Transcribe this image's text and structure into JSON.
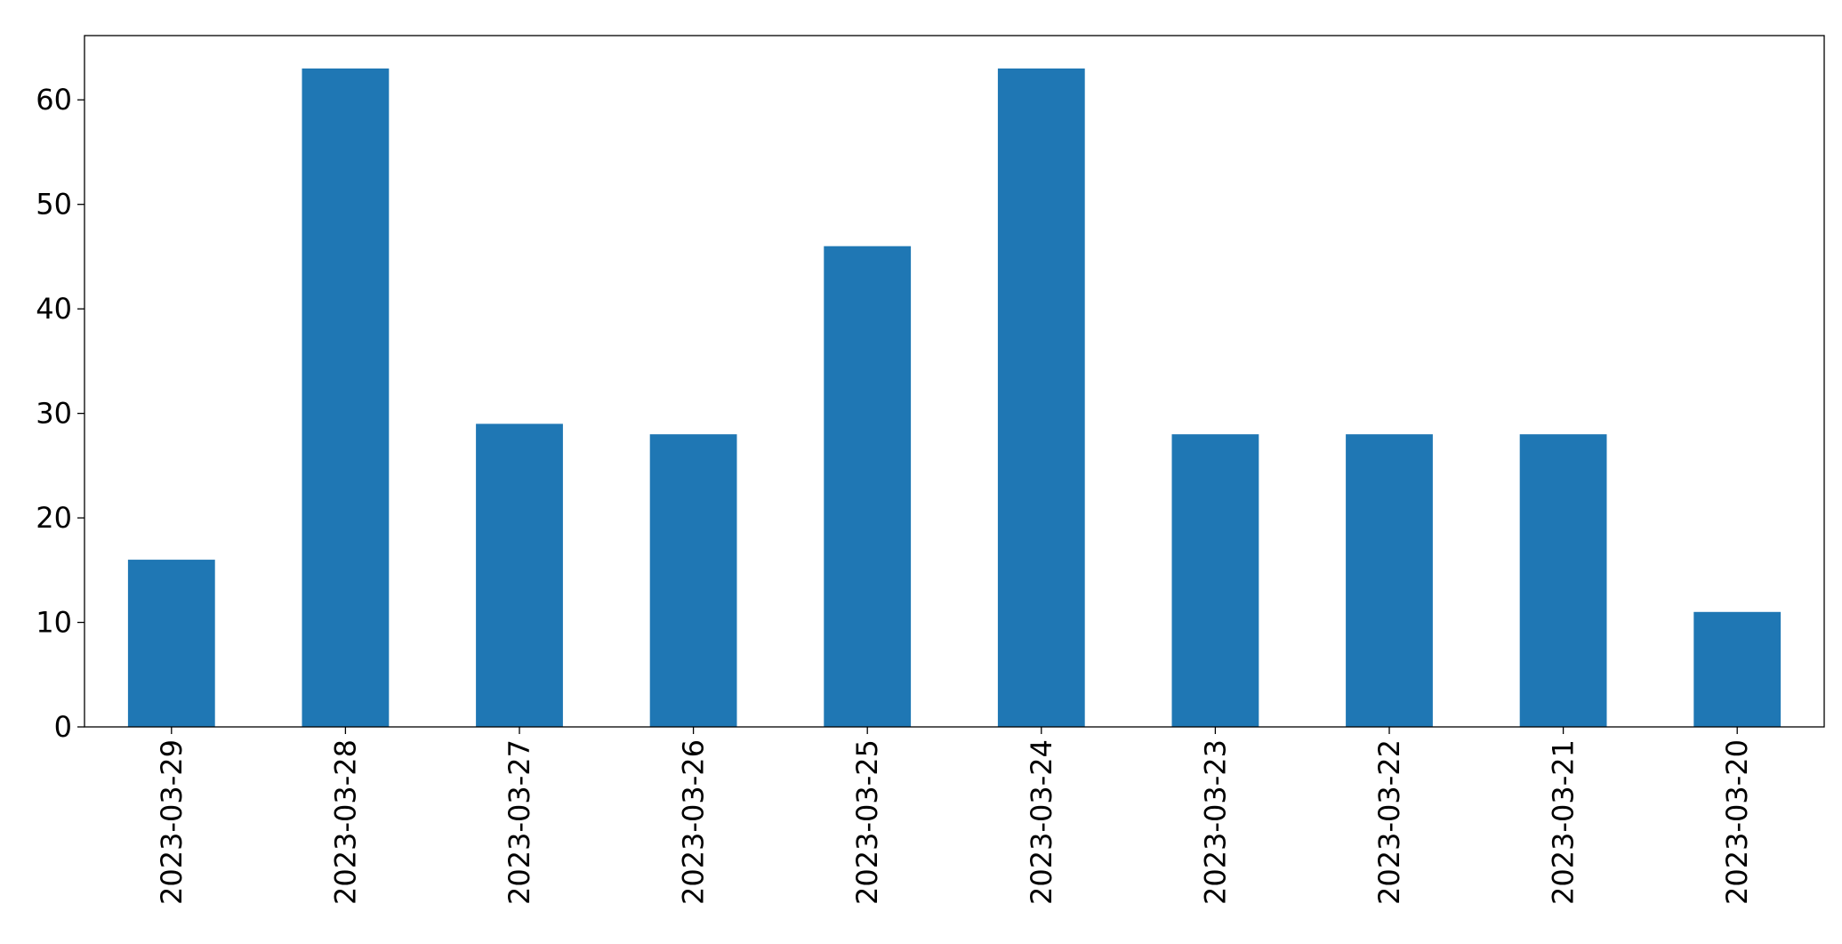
{
  "chart_data": {
    "type": "bar",
    "categories": [
      "2023-03-29",
      "2023-03-28",
      "2023-03-27",
      "2023-03-26",
      "2023-03-25",
      "2023-03-24",
      "2023-03-23",
      "2023-03-22",
      "2023-03-21",
      "2023-03-20"
    ],
    "values": [
      16,
      63,
      29,
      28,
      46,
      63,
      28,
      28,
      28,
      11
    ],
    "color": "#1f77b4",
    "ylim": [
      0,
      66.15
    ],
    "yticks": [
      0,
      10,
      20,
      30,
      40,
      50,
      60
    ],
    "grid": false
  }
}
